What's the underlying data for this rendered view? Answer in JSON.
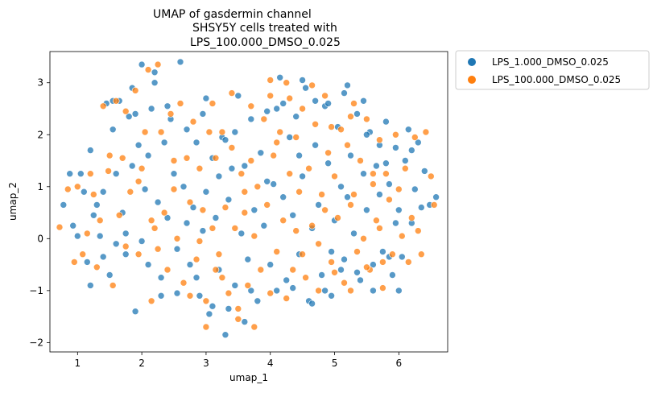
{
  "chart_data": {
    "type": "scatter",
    "title_lines": [
      "UMAP of gasdermin channel",
      "SHSY5Y cells treated with",
      "LPS_100.000_DMSO_0.025"
    ],
    "xlabel": "umap_1",
    "ylabel": "umap_2",
    "xlim": [
      0.57,
      6.76
    ],
    "ylim": [
      -2.18,
      3.6
    ],
    "xticks": [
      1,
      2,
      3,
      4,
      5,
      6
    ],
    "yticks": [
      -2,
      -1,
      0,
      1,
      2,
      3
    ],
    "grid": false,
    "legend_position": "outside-upper-right",
    "series": [
      {
        "name": "LPS_1.000_DMSO_0.025",
        "color": "#1f77b4",
        "points": [
          [
            0.78,
            0.65
          ],
          [
            0.88,
            1.25
          ],
          [
            0.93,
            0.25
          ],
          [
            1.0,
            0.05
          ],
          [
            1.05,
            1.25
          ],
          [
            1.1,
            0.9
          ],
          [
            1.15,
            -0.45
          ],
          [
            1.2,
            -0.9
          ],
          [
            1.25,
            0.45
          ],
          [
            1.3,
            0.65
          ],
          [
            1.35,
            0.05
          ],
          [
            1.4,
            0.9
          ],
          [
            1.45,
            2.6
          ],
          [
            1.5,
            -0.7
          ],
          [
            1.55,
            2.1
          ],
          [
            1.6,
            1.25
          ],
          [
            1.65,
            2.65
          ],
          [
            1.7,
            0.5
          ],
          [
            1.75,
            -0.3
          ],
          [
            1.8,
            2.35
          ],
          [
            1.85,
            2.9
          ],
          [
            1.9,
            -1.4
          ],
          [
            1.95,
            1.8
          ],
          [
            2.0,
            3.35
          ],
          [
            2.05,
            0.95
          ],
          [
            2.1,
            -0.5
          ],
          [
            2.15,
            2.5
          ],
          [
            2.2,
            3.2
          ],
          [
            2.25,
            0.7
          ],
          [
            2.3,
            -1.1
          ],
          [
            2.35,
            1.85
          ],
          [
            2.4,
            0.4
          ],
          [
            2.45,
            2.3
          ],
          [
            2.5,
            1.25
          ],
          [
            2.55,
            -0.2
          ],
          [
            2.6,
            3.4
          ],
          [
            2.65,
            1.0
          ],
          [
            2.7,
            2.1
          ],
          [
            2.75,
            -0.5
          ],
          [
            2.8,
            0.6
          ],
          [
            2.85,
            1.85
          ],
          [
            2.9,
            -1.1
          ],
          [
            2.95,
            0.15
          ],
          [
            3.0,
            0.9
          ],
          [
            3.05,
            -1.45
          ],
          [
            3.1,
            1.55
          ],
          [
            3.15,
            0.4
          ],
          [
            3.2,
            -0.6
          ],
          [
            3.25,
            1.95
          ],
          [
            3.3,
            -1.85
          ],
          [
            3.35,
            0.75
          ],
          [
            3.4,
            1.35
          ],
          [
            3.45,
            -0.9
          ],
          [
            3.5,
            2.75
          ],
          [
            3.55,
            0.1
          ],
          [
            3.6,
            1.4
          ],
          [
            3.65,
            -0.4
          ],
          [
            3.7,
            2.3
          ],
          [
            3.75,
            0.55
          ],
          [
            3.8,
            -1.2
          ],
          [
            3.85,
            1.65
          ],
          [
            3.9,
            0.25
          ],
          [
            3.95,
            2.45
          ],
          [
            4.0,
            -0.5
          ],
          [
            4.05,
            1.05
          ],
          [
            4.1,
            2.5
          ],
          [
            4.15,
            3.1
          ],
          [
            4.2,
            0.8
          ],
          [
            4.25,
            -0.8
          ],
          [
            4.3,
            1.95
          ],
          [
            4.35,
            0.45
          ],
          [
            4.4,
            2.35
          ],
          [
            4.45,
            -0.3
          ],
          [
            4.5,
            1.2
          ],
          [
            4.55,
            2.9
          ],
          [
            4.6,
            -1.2
          ],
          [
            4.65,
            0.2
          ],
          [
            4.7,
            1.8
          ],
          [
            4.75,
            0.65
          ],
          [
            4.8,
            -0.7
          ],
          [
            4.85,
            2.55
          ],
          [
            4.9,
            1.45
          ],
          [
            4.95,
            -1.1
          ],
          [
            5.0,
            0.35
          ],
          [
            5.05,
            2.15
          ],
          [
            5.1,
            1.0
          ],
          [
            5.15,
            -0.4
          ],
          [
            5.2,
            2.95
          ],
          [
            5.25,
            1.6
          ],
          [
            5.3,
            0.1
          ],
          [
            5.35,
            2.4
          ],
          [
            5.4,
            -0.8
          ],
          [
            5.45,
            1.25
          ],
          [
            5.5,
            0.55
          ],
          [
            5.55,
            2.05
          ],
          [
            5.6,
            -0.5
          ],
          [
            5.65,
            1.4
          ],
          [
            5.7,
            0.85
          ],
          [
            5.75,
            -0.25
          ],
          [
            5.8,
            2.25
          ],
          [
            5.85,
            1.05
          ],
          [
            5.9,
            -0.7
          ],
          [
            5.95,
            1.75
          ],
          [
            6.0,
            0.55
          ],
          [
            6.05,
            -0.35
          ],
          [
            6.1,
            1.5
          ],
          [
            6.15,
            2.1
          ],
          [
            6.2,
            0.3
          ],
          [
            6.25,
            0.95
          ],
          [
            6.3,
            1.85
          ],
          [
            6.35,
            0.6
          ],
          [
            6.4,
            1.3
          ],
          [
            6.48,
            0.65
          ],
          [
            6.58,
            0.8
          ],
          [
            1.2,
            1.7
          ],
          [
            1.6,
            -0.1
          ],
          [
            1.85,
            1.4
          ],
          [
            2.1,
            1.6
          ],
          [
            2.4,
            2.55
          ],
          [
            2.7,
            0.3
          ],
          [
            2.95,
            2.4
          ],
          [
            3.2,
            1.2
          ],
          [
            3.45,
            2.05
          ],
          [
            3.7,
            -1.0
          ],
          [
            3.95,
            1.1
          ],
          [
            4.2,
            2.6
          ],
          [
            4.45,
            1.6
          ],
          [
            4.7,
            2.65
          ],
          [
            4.95,
            -0.25
          ],
          [
            5.2,
            0.8
          ],
          [
            5.45,
            2.65
          ],
          [
            5.7,
            1.8
          ],
          [
            5.95,
            0.3
          ],
          [
            6.2,
            1.7
          ],
          [
            1.4,
            -0.35
          ],
          [
            1.75,
            0.1
          ],
          [
            2.0,
            -0.05
          ],
          [
            2.3,
            -0.75
          ],
          [
            2.55,
            -1.05
          ],
          [
            2.85,
            -0.75
          ],
          [
            3.1,
            -1.3
          ],
          [
            3.35,
            -1.35
          ],
          [
            3.6,
            -1.6
          ],
          [
            4.1,
            -1.0
          ],
          [
            4.35,
            -0.95
          ],
          [
            4.65,
            -1.25
          ],
          [
            4.85,
            -1.0
          ],
          [
            5.1,
            -0.6
          ],
          [
            5.35,
            -0.65
          ],
          [
            5.6,
            -1.0
          ],
          [
            5.85,
            -0.35
          ],
          [
            6.0,
            -1.0
          ],
          [
            3.3,
            1.9
          ],
          [
            3.0,
            2.7
          ],
          [
            2.2,
            3.0
          ],
          [
            1.9,
            2.4
          ],
          [
            1.55,
            2.65
          ],
          [
            4.5,
            3.05
          ],
          [
            4.9,
            2.6
          ],
          [
            5.15,
            2.8
          ],
          [
            5.5,
            2.0
          ],
          [
            5.8,
            1.45
          ]
        ]
      },
      {
        "name": "LPS_100.000_DMSO_0.025",
        "color": "#ff7f0e",
        "points": [
          [
            0.72,
            0.22
          ],
          [
            0.85,
            0.95
          ],
          [
            0.95,
            -0.45
          ],
          [
            1.0,
            1.0
          ],
          [
            1.08,
            -0.3
          ],
          [
            1.15,
            0.1
          ],
          [
            1.2,
            1.25
          ],
          [
            1.3,
            -0.55
          ],
          [
            1.35,
            0.35
          ],
          [
            1.4,
            2.55
          ],
          [
            1.48,
            1.3
          ],
          [
            1.55,
            -0.9
          ],
          [
            1.6,
            2.65
          ],
          [
            1.7,
            1.55
          ],
          [
            1.75,
            -0.15
          ],
          [
            1.82,
            0.9
          ],
          [
            1.9,
            2.85
          ],
          [
            1.95,
            -0.3
          ],
          [
            2.0,
            1.35
          ],
          [
            2.05,
            2.05
          ],
          [
            2.1,
            3.25
          ],
          [
            2.15,
            -1.2
          ],
          [
            2.2,
            0.2
          ],
          [
            2.25,
            3.35
          ],
          [
            2.3,
            2.05
          ],
          [
            2.35,
            0.5
          ],
          [
            2.4,
            -0.6
          ],
          [
            2.45,
            2.4
          ],
          [
            2.5,
            1.5
          ],
          [
            2.55,
            0.0
          ],
          [
            2.6,
            2.6
          ],
          [
            2.65,
            -0.85
          ],
          [
            2.7,
            1.55
          ],
          [
            2.75,
            0.7
          ],
          [
            2.8,
            2.25
          ],
          [
            2.85,
            -0.4
          ],
          [
            2.9,
            1.35
          ],
          [
            2.95,
            0.55
          ],
          [
            3.0,
            -1.2
          ],
          [
            3.05,
            2.05
          ],
          [
            3.1,
            0.2
          ],
          [
            3.15,
            1.55
          ],
          [
            3.2,
            -0.3
          ],
          [
            3.25,
            2.05
          ],
          [
            3.3,
            0.6
          ],
          [
            3.35,
            -1.05
          ],
          [
            3.4,
            1.75
          ],
          [
            3.45,
            0.2
          ],
          [
            3.5,
            -1.55
          ],
          [
            3.55,
            1.25
          ],
          [
            3.6,
            0.5
          ],
          [
            3.65,
            -0.9
          ],
          [
            3.7,
            2.55
          ],
          [
            3.75,
            0.05
          ],
          [
            3.8,
            1.0
          ],
          [
            3.85,
            -0.6
          ],
          [
            3.9,
            2.3
          ],
          [
            3.95,
            0.65
          ],
          [
            4.0,
            3.05
          ],
          [
            4.05,
            1.6
          ],
          [
            4.1,
            -0.25
          ],
          [
            4.15,
            2.05
          ],
          [
            4.2,
            0.35
          ],
          [
            4.25,
            3.0
          ],
          [
            4.3,
            1.25
          ],
          [
            4.35,
            -0.6
          ],
          [
            4.4,
            1.95
          ],
          [
            4.45,
            0.9
          ],
          [
            4.5,
            2.5
          ],
          [
            4.55,
            -0.75
          ],
          [
            4.6,
            1.35
          ],
          [
            4.65,
            0.25
          ],
          [
            4.7,
            2.2
          ],
          [
            4.75,
            -1.0
          ],
          [
            4.8,
            0.85
          ],
          [
            4.85,
            2.75
          ],
          [
            4.9,
            1.65
          ],
          [
            4.95,
            -0.45
          ],
          [
            5.0,
            1.2
          ],
          [
            5.05,
            0.4
          ],
          [
            5.1,
            2.1
          ],
          [
            5.15,
            -0.85
          ],
          [
            5.2,
            1.8
          ],
          [
            5.25,
            0.65
          ],
          [
            5.3,
            2.6
          ],
          [
            5.35,
            -0.25
          ],
          [
            5.4,
            1.5
          ],
          [
            5.45,
            0.0
          ],
          [
            5.5,
            2.3
          ],
          [
            5.55,
            -0.6
          ],
          [
            5.6,
            1.05
          ],
          [
            5.65,
            0.35
          ],
          [
            5.7,
            1.9
          ],
          [
            5.75,
            -0.95
          ],
          [
            5.8,
            1.25
          ],
          [
            5.85,
            0.75
          ],
          [
            5.9,
            -0.3
          ],
          [
            5.95,
            2.0
          ],
          [
            6.0,
            0.95
          ],
          [
            6.05,
            0.05
          ],
          [
            6.1,
            1.35
          ],
          [
            6.15,
            -0.45
          ],
          [
            6.2,
            0.4
          ],
          [
            6.25,
            1.95
          ],
          [
            6.3,
            0.15
          ],
          [
            6.35,
            -0.3
          ],
          [
            6.42,
            2.05
          ],
          [
            6.5,
            1.2
          ],
          [
            6.55,
            0.65
          ],
          [
            1.25,
            0.85
          ],
          [
            1.65,
            0.45
          ],
          [
            1.95,
            1.1
          ],
          [
            2.25,
            -0.2
          ],
          [
            2.5,
            0.95
          ],
          [
            2.75,
            -1.1
          ],
          [
            3.0,
            -1.7
          ],
          [
            3.25,
            -0.75
          ],
          [
            3.5,
            -1.35
          ],
          [
            3.75,
            -1.7
          ],
          [
            4.0,
            -1.05
          ],
          [
            4.25,
            -1.15
          ],
          [
            4.5,
            -0.3
          ],
          [
            4.75,
            -0.1
          ],
          [
            5.0,
            -0.65
          ],
          [
            5.25,
            -1.0
          ],
          [
            5.5,
            -0.55
          ],
          [
            5.75,
            -0.45
          ],
          [
            3.1,
            2.6
          ],
          [
            3.4,
            2.8
          ],
          [
            3.7,
            1.5
          ],
          [
            4.0,
            2.75
          ],
          [
            4.3,
            2.7
          ],
          [
            4.65,
            2.95
          ],
          [
            4.95,
            2.15
          ],
          [
            5.25,
            2.35
          ],
          [
            5.6,
            1.25
          ],
          [
            2.15,
            0.35
          ],
          [
            1.75,
            2.45
          ],
          [
            1.5,
            1.6
          ],
          [
            2.9,
            -0.05
          ],
          [
            3.15,
            -0.6
          ],
          [
            3.6,
            0.9
          ],
          [
            4.1,
            1.85
          ],
          [
            4.4,
            0.15
          ],
          [
            4.85,
            0.55
          ],
          [
            5.3,
            0.85
          ],
          [
            5.7,
            0.2
          ]
        ]
      }
    ]
  }
}
